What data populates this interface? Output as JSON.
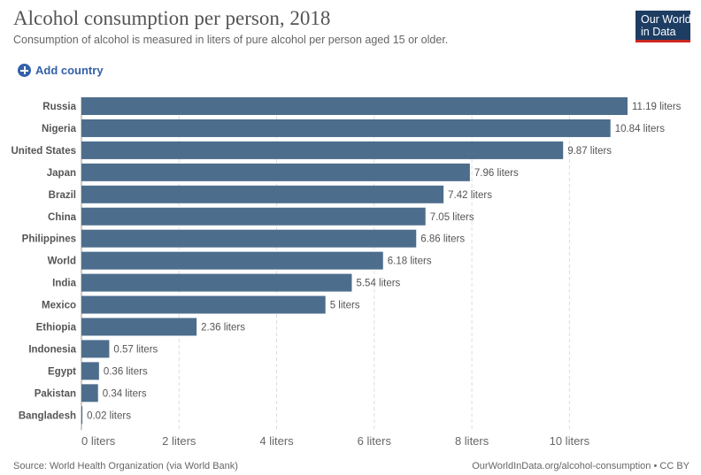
{
  "header": {
    "title": "Alcohol consumption per person, 2018",
    "subtitle": "Consumption of alcohol is measured in liters of pure alcohol per person aged 15 or older.",
    "logo_line1": "Our World",
    "logo_line2": "in Data"
  },
  "controls": {
    "add_country_label": "Add country"
  },
  "footer": {
    "source": "Source: World Health Organization (via World Bank)",
    "url": "OurWorldInData.org/alcohol-consumption • CC BY"
  },
  "colors": {
    "bar": "#4d6d8c",
    "accent": "#3360a9",
    "logo_bg": "#1d3d63",
    "logo_stripe": "#ce261e"
  },
  "chart_data": {
    "type": "bar",
    "orientation": "horizontal",
    "categories": [
      "Russia",
      "Nigeria",
      "United States",
      "Japan",
      "Brazil",
      "China",
      "Philippines",
      "World",
      "India",
      "Mexico",
      "Ethiopia",
      "Indonesia",
      "Egypt",
      "Pakistan",
      "Bangladesh"
    ],
    "values": [
      11.19,
      10.84,
      9.87,
      7.96,
      7.42,
      7.05,
      6.86,
      6.18,
      5.54,
      5,
      2.36,
      0.57,
      0.36,
      0.34,
      0.02
    ],
    "value_labels": [
      "11.19 liters",
      "10.84 liters",
      "9.87 liters",
      "7.96 liters",
      "7.42 liters",
      "7.05 liters",
      "6.86 liters",
      "6.18 liters",
      "5.54 liters",
      "5 liters",
      "2.36 liters",
      "0.57 liters",
      "0.36 liters",
      "0.34 liters",
      "0.02 liters"
    ],
    "x_ticks": [
      0,
      2,
      4,
      6,
      8,
      10
    ],
    "x_tick_labels": [
      "0 liters",
      "2 liters",
      "4 liters",
      "6 liters",
      "8 liters",
      "10 liters"
    ],
    "xlim": [
      0,
      11.19
    ],
    "grid": true
  }
}
